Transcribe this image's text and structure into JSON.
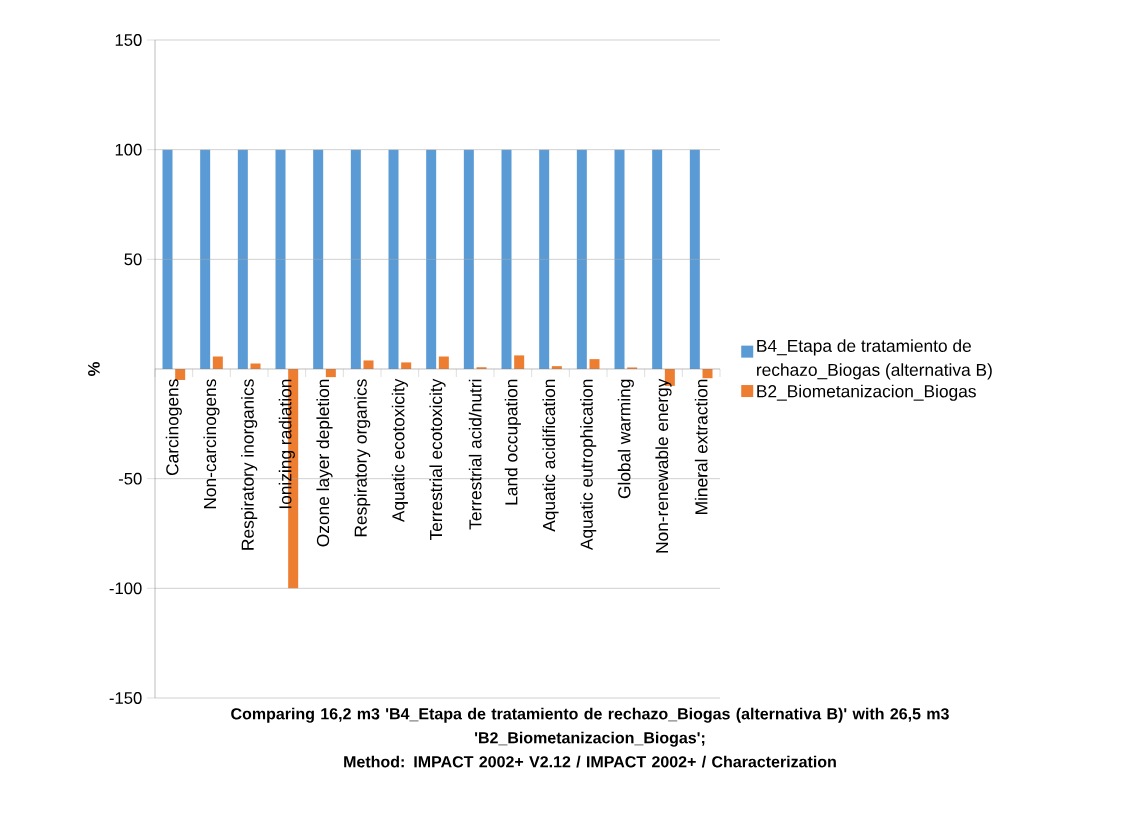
{
  "chart_data": {
    "type": "bar",
    "title": "Comparing 16,2 m3 'B4_Etapa de tratamiento de rechazo_Biogas (alternativa B)' with 26,5 m3 'B2_Biometanizacion_Biogas';",
    "subtitle": "Method: IMPACT 2002+ V2.12 / IMPACT 2002+ / Characterization",
    "ylabel": "%",
    "categories": [
      "Carcinogens",
      "Non-carcinogens",
      "Respiratory inorganics",
      "Ionizing radiation",
      "Ozone layer depletion",
      "Respiratory organics",
      "Aquatic ecotoxicity",
      "Terrestrial ecotoxicity",
      "Terrestrial acid/nutri",
      "Land occupation",
      "Aquatic acidification",
      "Aquatic eutrophication",
      "Global warming",
      "Non-renewable energy",
      "Mineral extraction"
    ],
    "series": [
      {
        "name": "B4_Etapa de tratamiento de rechazo_Biogas (alternativa B)",
        "color": "#5b9bd5",
        "values": [
          100,
          100,
          100,
          100,
          100,
          100,
          100,
          100,
          100,
          100,
          100,
          100,
          100,
          100,
          100
        ]
      },
      {
        "name": "B2_Biometanizacion_Biogas",
        "color": "#ed7d31",
        "values": [
          -5,
          5.7,
          2.5,
          -100,
          -3.7,
          3.9,
          3,
          5.7,
          0.8,
          6.2,
          1.3,
          4.5,
          0.7,
          -7.7,
          -4.2
        ]
      }
    ],
    "ylim": [
      -150,
      150
    ],
    "yticks": [
      -150,
      -100,
      -50,
      50,
      100,
      150
    ],
    "grid": "y",
    "legend": "right"
  }
}
